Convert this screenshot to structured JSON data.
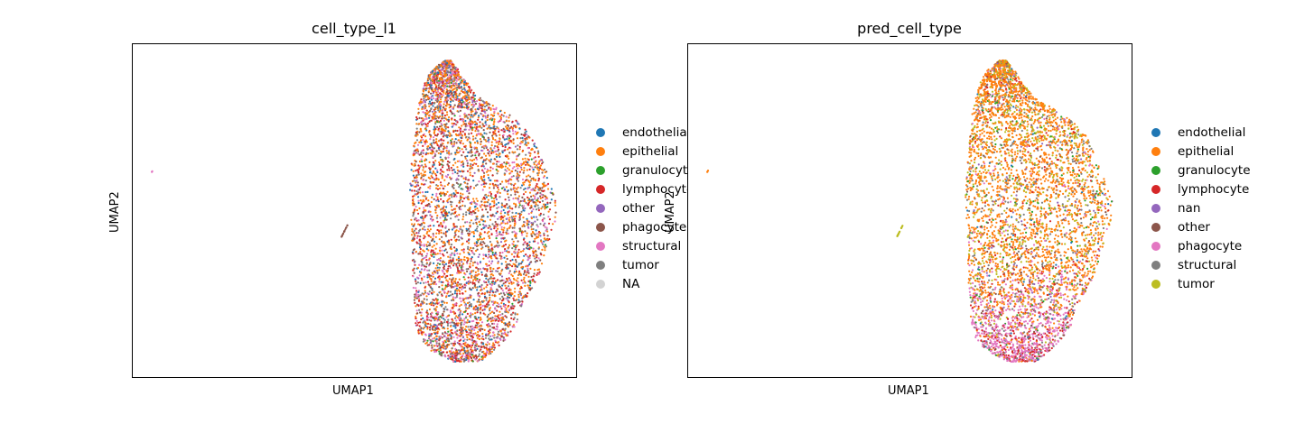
{
  "figure": {
    "charts": [
      {
        "title": "cell_type_l1",
        "xlabel": "UMAP1",
        "ylabel": "UMAP2",
        "legend": [
          {
            "label": "endothelial",
            "color": "#1f77b4"
          },
          {
            "label": "epithelial",
            "color": "#ff7f0e"
          },
          {
            "label": "granulocyte",
            "color": "#2ca02c"
          },
          {
            "label": "lymphocyte",
            "color": "#d62728"
          },
          {
            "label": "other",
            "color": "#9467bd"
          },
          {
            "label": "phagocyte",
            "color": "#8c564b"
          },
          {
            "label": "structural",
            "color": "#e377c2"
          },
          {
            "label": "tumor",
            "color": "#7f7f7f"
          },
          {
            "label": "NA",
            "color": "#d3d3d3"
          }
        ]
      },
      {
        "title": "pred_cell_type",
        "xlabel": "UMAP1",
        "ylabel": "UMAP2",
        "legend": [
          {
            "label": "endothelial",
            "color": "#1f77b4"
          },
          {
            "label": "epithelial",
            "color": "#ff7f0e"
          },
          {
            "label": "granulocyte",
            "color": "#2ca02c"
          },
          {
            "label": "lymphocyte",
            "color": "#d62728"
          },
          {
            "label": "nan",
            "color": "#9467bd"
          },
          {
            "label": "other",
            "color": "#8c564b"
          },
          {
            "label": "phagocyte",
            "color": "#e377c2"
          },
          {
            "label": "structural",
            "color": "#7f7f7f"
          },
          {
            "label": "tumor",
            "color": "#bcbd22"
          }
        ]
      }
    ]
  },
  "chart_data": [
    {
      "type": "scatter",
      "title": "cell_type_l1",
      "xlabel": "UMAP1",
      "ylabel": "UMAP2",
      "ticks": "none",
      "grid": false,
      "legend_placement": "right outside",
      "categories": [
        "endothelial",
        "epithelial",
        "granulocyte",
        "lymphocyte",
        "other",
        "phagocyte",
        "structural",
        "tumor",
        "NA"
      ],
      "colors": [
        "#1f77b4",
        "#ff7f0e",
        "#2ca02c",
        "#d62728",
        "#9467bd",
        "#8c564b",
        "#e377c2",
        "#7f7f7f",
        "#d3d3d3"
      ],
      "mix": [
        0.08,
        0.34,
        0.02,
        0.16,
        0.05,
        0.1,
        0.13,
        0.12,
        0.0
      ],
      "bottom_mix": [
        0.05,
        0.22,
        0.02,
        0.22,
        0.03,
        0.12,
        0.18,
        0.16,
        0.0
      ],
      "small_clusters": [
        {
          "color_index": 6
        },
        {
          "color_index": 5
        }
      ]
    },
    {
      "type": "scatter",
      "title": "pred_cell_type",
      "xlabel": "UMAP1",
      "ylabel": "UMAP2",
      "ticks": "none",
      "grid": false,
      "legend_placement": "right outside",
      "categories": [
        "endothelial",
        "epithelial",
        "granulocyte",
        "lymphocyte",
        "nan",
        "other",
        "phagocyte",
        "structural",
        "tumor"
      ],
      "colors": [
        "#1f77b4",
        "#ff7f0e",
        "#2ca02c",
        "#d62728",
        "#9467bd",
        "#8c564b",
        "#e377c2",
        "#7f7f7f",
        "#bcbd22"
      ],
      "mix": [
        0.01,
        0.6,
        0.03,
        0.04,
        0.02,
        0.02,
        0.04,
        0.08,
        0.16
      ],
      "bottom_mix": [
        0.01,
        0.1,
        0.02,
        0.2,
        0.02,
        0.03,
        0.52,
        0.08,
        0.02
      ],
      "small_clusters": [
        {
          "color_index": 1
        },
        {
          "color_index": 8
        }
      ]
    }
  ]
}
